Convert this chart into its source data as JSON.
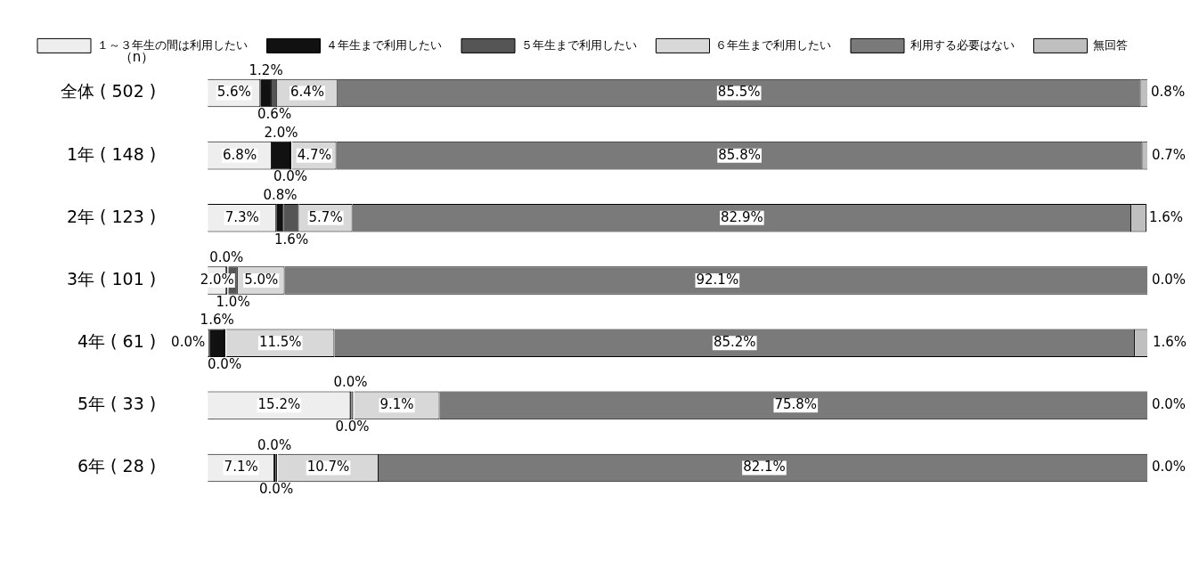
{
  "chart_data": {
    "type": "bar",
    "orientation": "horizontal",
    "stacked": true,
    "categories": [
      "全体 ( 502 )",
      "1年 ( 148 )",
      "2年 ( 123 )",
      "3年 ( 101 )",
      "4年 ( 61 )",
      "5年 ( 33 )",
      "6年 ( 28 )"
    ],
    "series": [
      {
        "name": "１～３年生の間は利用したい",
        "color": "#eeeeee",
        "values": [
          5.6,
          6.8,
          7.3,
          2.0,
          0.0,
          15.2,
          7.1
        ],
        "value_labels": [
          "5.6%",
          "6.8%",
          "7.3%",
          "2.0%",
          "0.0%",
          "15.2%",
          "7.1%"
        ]
      },
      {
        "name": "４年生まで利用したい",
        "color": "#111111",
        "values": [
          1.2,
          2.0,
          0.8,
          0.0,
          1.6,
          0.0,
          0.0
        ],
        "value_labels": [
          "1.2%",
          "2.0%",
          "0.8%",
          "0.0%",
          "1.6%",
          "0.0%",
          "0.0%"
        ]
      },
      {
        "name": "５年生まで利用したい",
        "color": "#555555",
        "values": [
          0.6,
          0.0,
          1.6,
          1.0,
          0.0,
          0.0,
          0.0
        ],
        "value_labels": [
          "0.6%",
          "0.0%",
          "1.6%",
          "1.0%",
          "0.0%",
          "0.0%",
          "0.0%"
        ]
      },
      {
        "name": "６年生まで利用したい",
        "color": "#d8d8d8",
        "values": [
          6.4,
          4.7,
          5.7,
          5.0,
          11.5,
          9.1,
          10.7
        ],
        "value_labels": [
          "6.4%",
          "4.7%",
          "5.7%",
          "5.0%",
          "11.5%",
          "9.1%",
          "10.7%"
        ]
      },
      {
        "name": "利用する必要はない",
        "color": "#7a7a7a",
        "values": [
          85.5,
          85.8,
          82.9,
          92.1,
          85.2,
          75.8,
          82.1
        ],
        "value_labels": [
          "85.5%",
          "85.8%",
          "82.9%",
          "92.1%",
          "85.2%",
          "75.8%",
          "82.1%"
        ]
      },
      {
        "name": "無回答",
        "color": "#bfbfbf",
        "values": [
          0.8,
          0.7,
          1.6,
          0.0,
          1.6,
          0.0,
          0.0
        ],
        "value_labels": [
          "0.8%",
          "0.7%",
          "1.6%",
          "0.0%",
          "1.6%",
          "0.0%",
          "0.0%"
        ]
      }
    ],
    "xlim": [
      0,
      100
    ],
    "tick_labels": "y",
    "legend": "top",
    "annotations": [
      "（n）"
    ]
  }
}
